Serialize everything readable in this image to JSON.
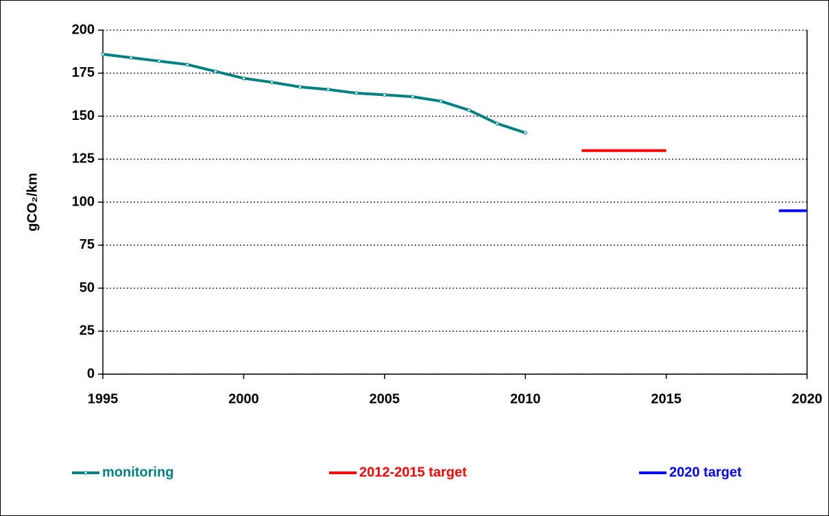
{
  "chart_data": {
    "type": "line",
    "y_label": "gCO₂/km",
    "xlim": [
      1995,
      2020
    ],
    "xticks": [
      1995,
      2000,
      2005,
      2010,
      2015,
      2020
    ],
    "ylim": [
      0,
      200
    ],
    "yticks": [
      0,
      25,
      50,
      75,
      100,
      125,
      150,
      175,
      200
    ],
    "grid": true,
    "legend": "bottom",
    "series": [
      {
        "name": "monitoring",
        "color": "#008080",
        "markers": true,
        "x": [
          1995,
          1996,
          1997,
          1998,
          1999,
          2000,
          2001,
          2002,
          2003,
          2004,
          2005,
          2006,
          2007,
          2008,
          2009,
          2010
        ],
        "values": [
          186,
          184,
          182,
          180,
          176,
          172,
          169.7,
          167,
          165.5,
          163.4,
          162.4,
          161.3,
          158.7,
          153.5,
          145.7,
          140.3
        ]
      },
      {
        "name": "2012-2015 target",
        "color": "#ff0000",
        "markers": false,
        "x": [
          2012,
          2015
        ],
        "values": [
          130,
          130
        ]
      },
      {
        "name": "2020 target",
        "color": "#0000ff",
        "markers": false,
        "x": [
          2019,
          2020
        ],
        "values": [
          95,
          95
        ]
      }
    ]
  }
}
